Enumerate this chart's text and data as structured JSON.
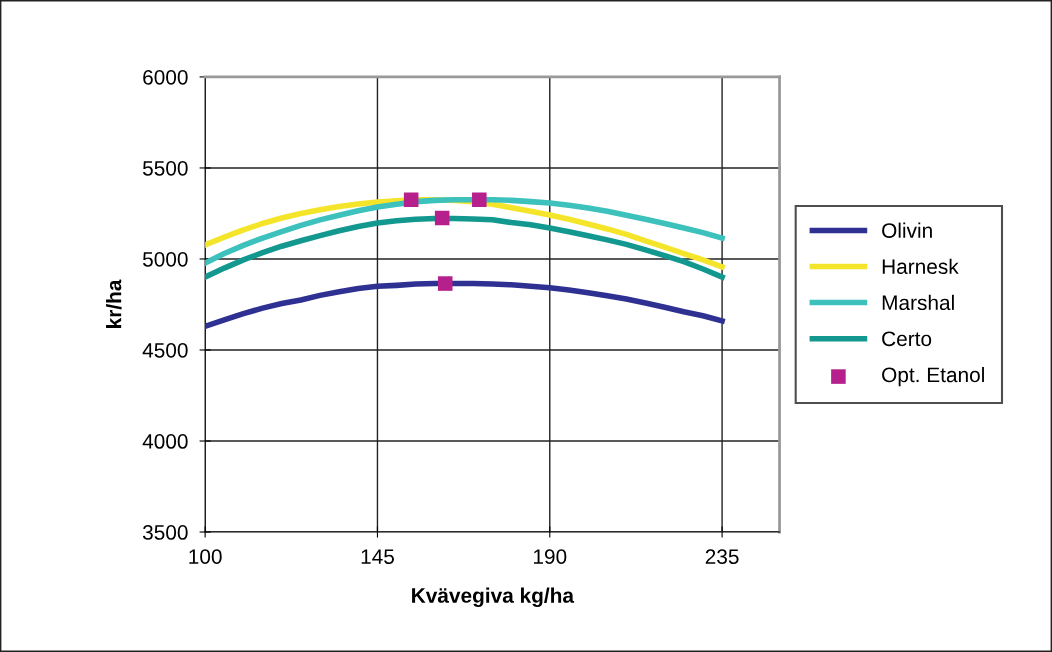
{
  "chart_data": {
    "type": "line",
    "xlabel": "Kvävegiva kg/ha",
    "ylabel": "kr/ha",
    "x": [
      100,
      105,
      110,
      115,
      120,
      125,
      130,
      135,
      140,
      145,
      150,
      155,
      160,
      165,
      170,
      175,
      180,
      185,
      190,
      195,
      200,
      205,
      210,
      215,
      220,
      225,
      230,
      235
    ],
    "xlim": [
      100,
      250
    ],
    "xticks": [
      100,
      145,
      190,
      235
    ],
    "ylim": [
      3500,
      6000
    ],
    "yticks": [
      3500,
      4000,
      4500,
      5000,
      5500,
      6000
    ],
    "grid": true,
    "legend": "right",
    "marker": "none",
    "line_style": "solid",
    "series": [
      {
        "name": "Olivin",
        "color": "#2e3192",
        "values": [
          4630,
          4665,
          4700,
          4730,
          4755,
          4775,
          4800,
          4820,
          4838,
          4850,
          4855,
          4862,
          4865,
          4865,
          4865,
          4862,
          4858,
          4850,
          4842,
          4830,
          4815,
          4798,
          4780,
          4758,
          4735,
          4710,
          4688,
          4660
        ]
      },
      {
        "name": "Harnesk",
        "color": "#f5e52a",
        "values": [
          5077,
          5120,
          5160,
          5195,
          5225,
          5250,
          5270,
          5288,
          5302,
          5313,
          5320,
          5325,
          5325,
          5322,
          5315,
          5300,
          5282,
          5262,
          5242,
          5218,
          5192,
          5165,
          5135,
          5100,
          5065,
          5030,
          4995,
          4956
        ]
      },
      {
        "name": "Marshal",
        "color": "#3cc1bd",
        "values": [
          4978,
          5030,
          5075,
          5115,
          5150,
          5185,
          5215,
          5240,
          5265,
          5286,
          5300,
          5315,
          5322,
          5325,
          5325,
          5325,
          5322,
          5315,
          5308,
          5295,
          5280,
          5262,
          5240,
          5218,
          5195,
          5170,
          5145,
          5115
        ]
      },
      {
        "name": "Certo",
        "color": "#139890",
        "values": [
          4901,
          4950,
          4995,
          5035,
          5070,
          5100,
          5128,
          5155,
          5178,
          5198,
          5210,
          5218,
          5222,
          5222,
          5220,
          5215,
          5200,
          5188,
          5170,
          5150,
          5128,
          5105,
          5080,
          5050,
          5018,
          4985,
          4945,
          4901
        ]
      },
      {
        "name": "Opt. Etanol",
        "type": "scatter",
        "marker": "square",
        "color": "#b5208c",
        "x": [
          153.8,
          171.6,
          161.9,
          162.7
        ],
        "values": [
          5325,
          5325,
          5225,
          4865
        ]
      }
    ]
  }
}
